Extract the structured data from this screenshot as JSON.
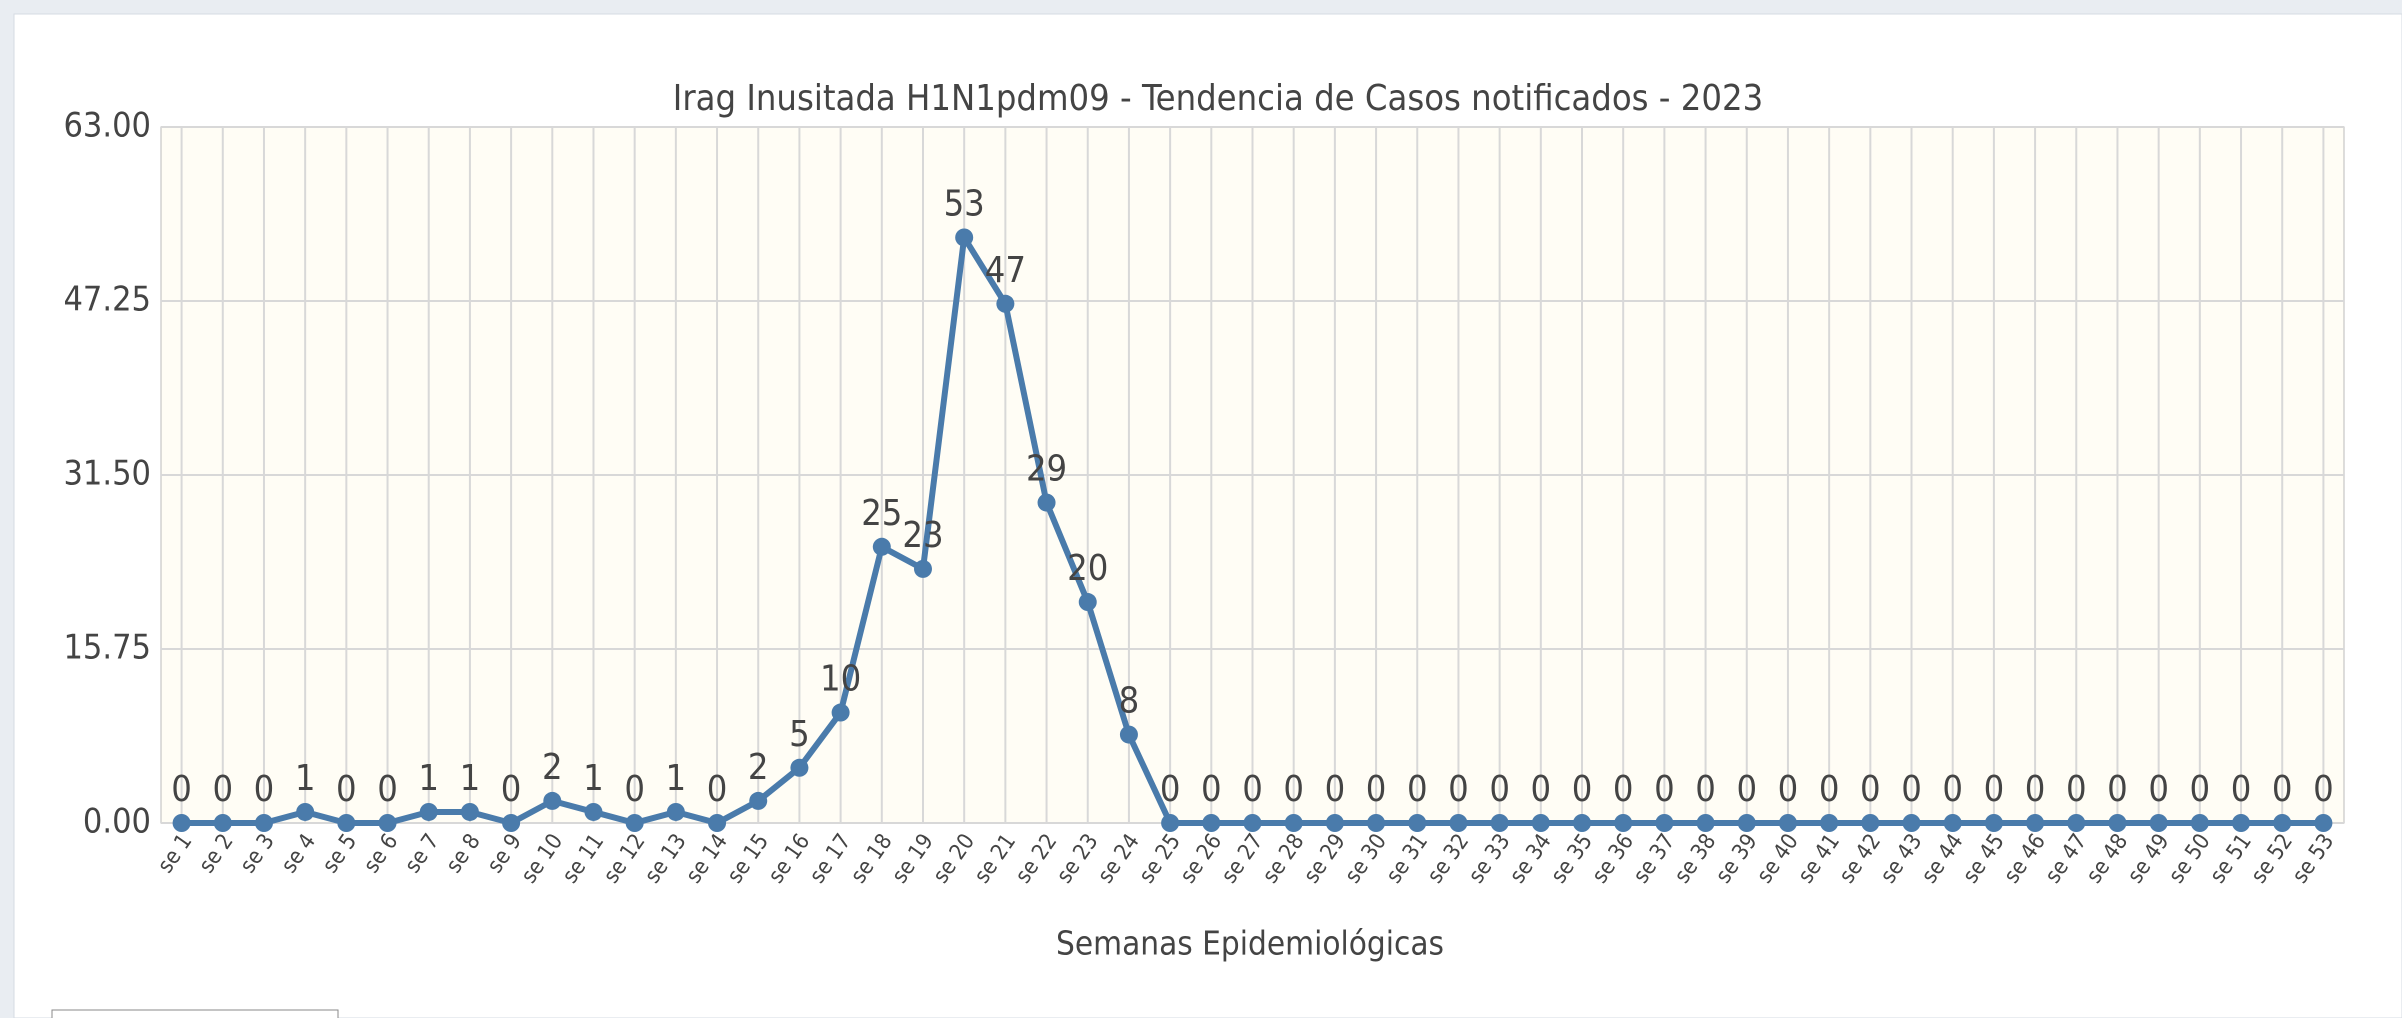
{
  "chart_data": {
    "type": "line",
    "title": "Irag Inusitada H1N1pdm09 - Tendencia de Casos notificados - 2023",
    "x_label": "Semanas Epidemiológicas",
    "categories": [
      "se 1",
      "se 2",
      "se 3",
      "se 4",
      "se 5",
      "se 6",
      "se 7",
      "se 8",
      "se 9",
      "se 10",
      "se 11",
      "se 12",
      "se 13",
      "se 14",
      "se 15",
      "se 16",
      "se 17",
      "se 18",
      "se 19",
      "se 20",
      "se 21",
      "se 22",
      "se 23",
      "se 24",
      "se 25",
      "se 26",
      "se 27",
      "se 28",
      "se 29",
      "se 30",
      "se 31",
      "se 32",
      "se 33",
      "se 34",
      "se 35",
      "se 36",
      "se 37",
      "se 38",
      "se 39",
      "se 40",
      "se 41",
      "se 42",
      "se 43",
      "se 44",
      "se 45",
      "se 46",
      "se 47",
      "se 48",
      "se 49",
      "se 50",
      "se 51",
      "se 52",
      "se 53"
    ],
    "values": [
      0,
      0,
      0,
      1,
      0,
      0,
      1,
      1,
      0,
      2,
      1,
      0,
      1,
      0,
      2,
      5,
      10,
      25,
      23,
      53,
      47,
      29,
      20,
      8,
      0,
      0,
      0,
      0,
      0,
      0,
      0,
      0,
      0,
      0,
      0,
      0,
      0,
      0,
      0,
      0,
      0,
      0,
      0,
      0,
      0,
      0,
      0,
      0,
      0,
      0,
      0,
      0,
      0
    ],
    "color": "#4a7bab",
    "ylim": [
      0,
      63
    ],
    "yticks": [
      {
        "value": 0,
        "label": "0.00"
      },
      {
        "value": 15.75,
        "label": "15.75"
      },
      {
        "value": 31.5,
        "label": "31.50"
      },
      {
        "value": 47.25,
        "label": "47.25"
      },
      {
        "value": 63,
        "label": "63.00"
      }
    ],
    "grid": true
  }
}
